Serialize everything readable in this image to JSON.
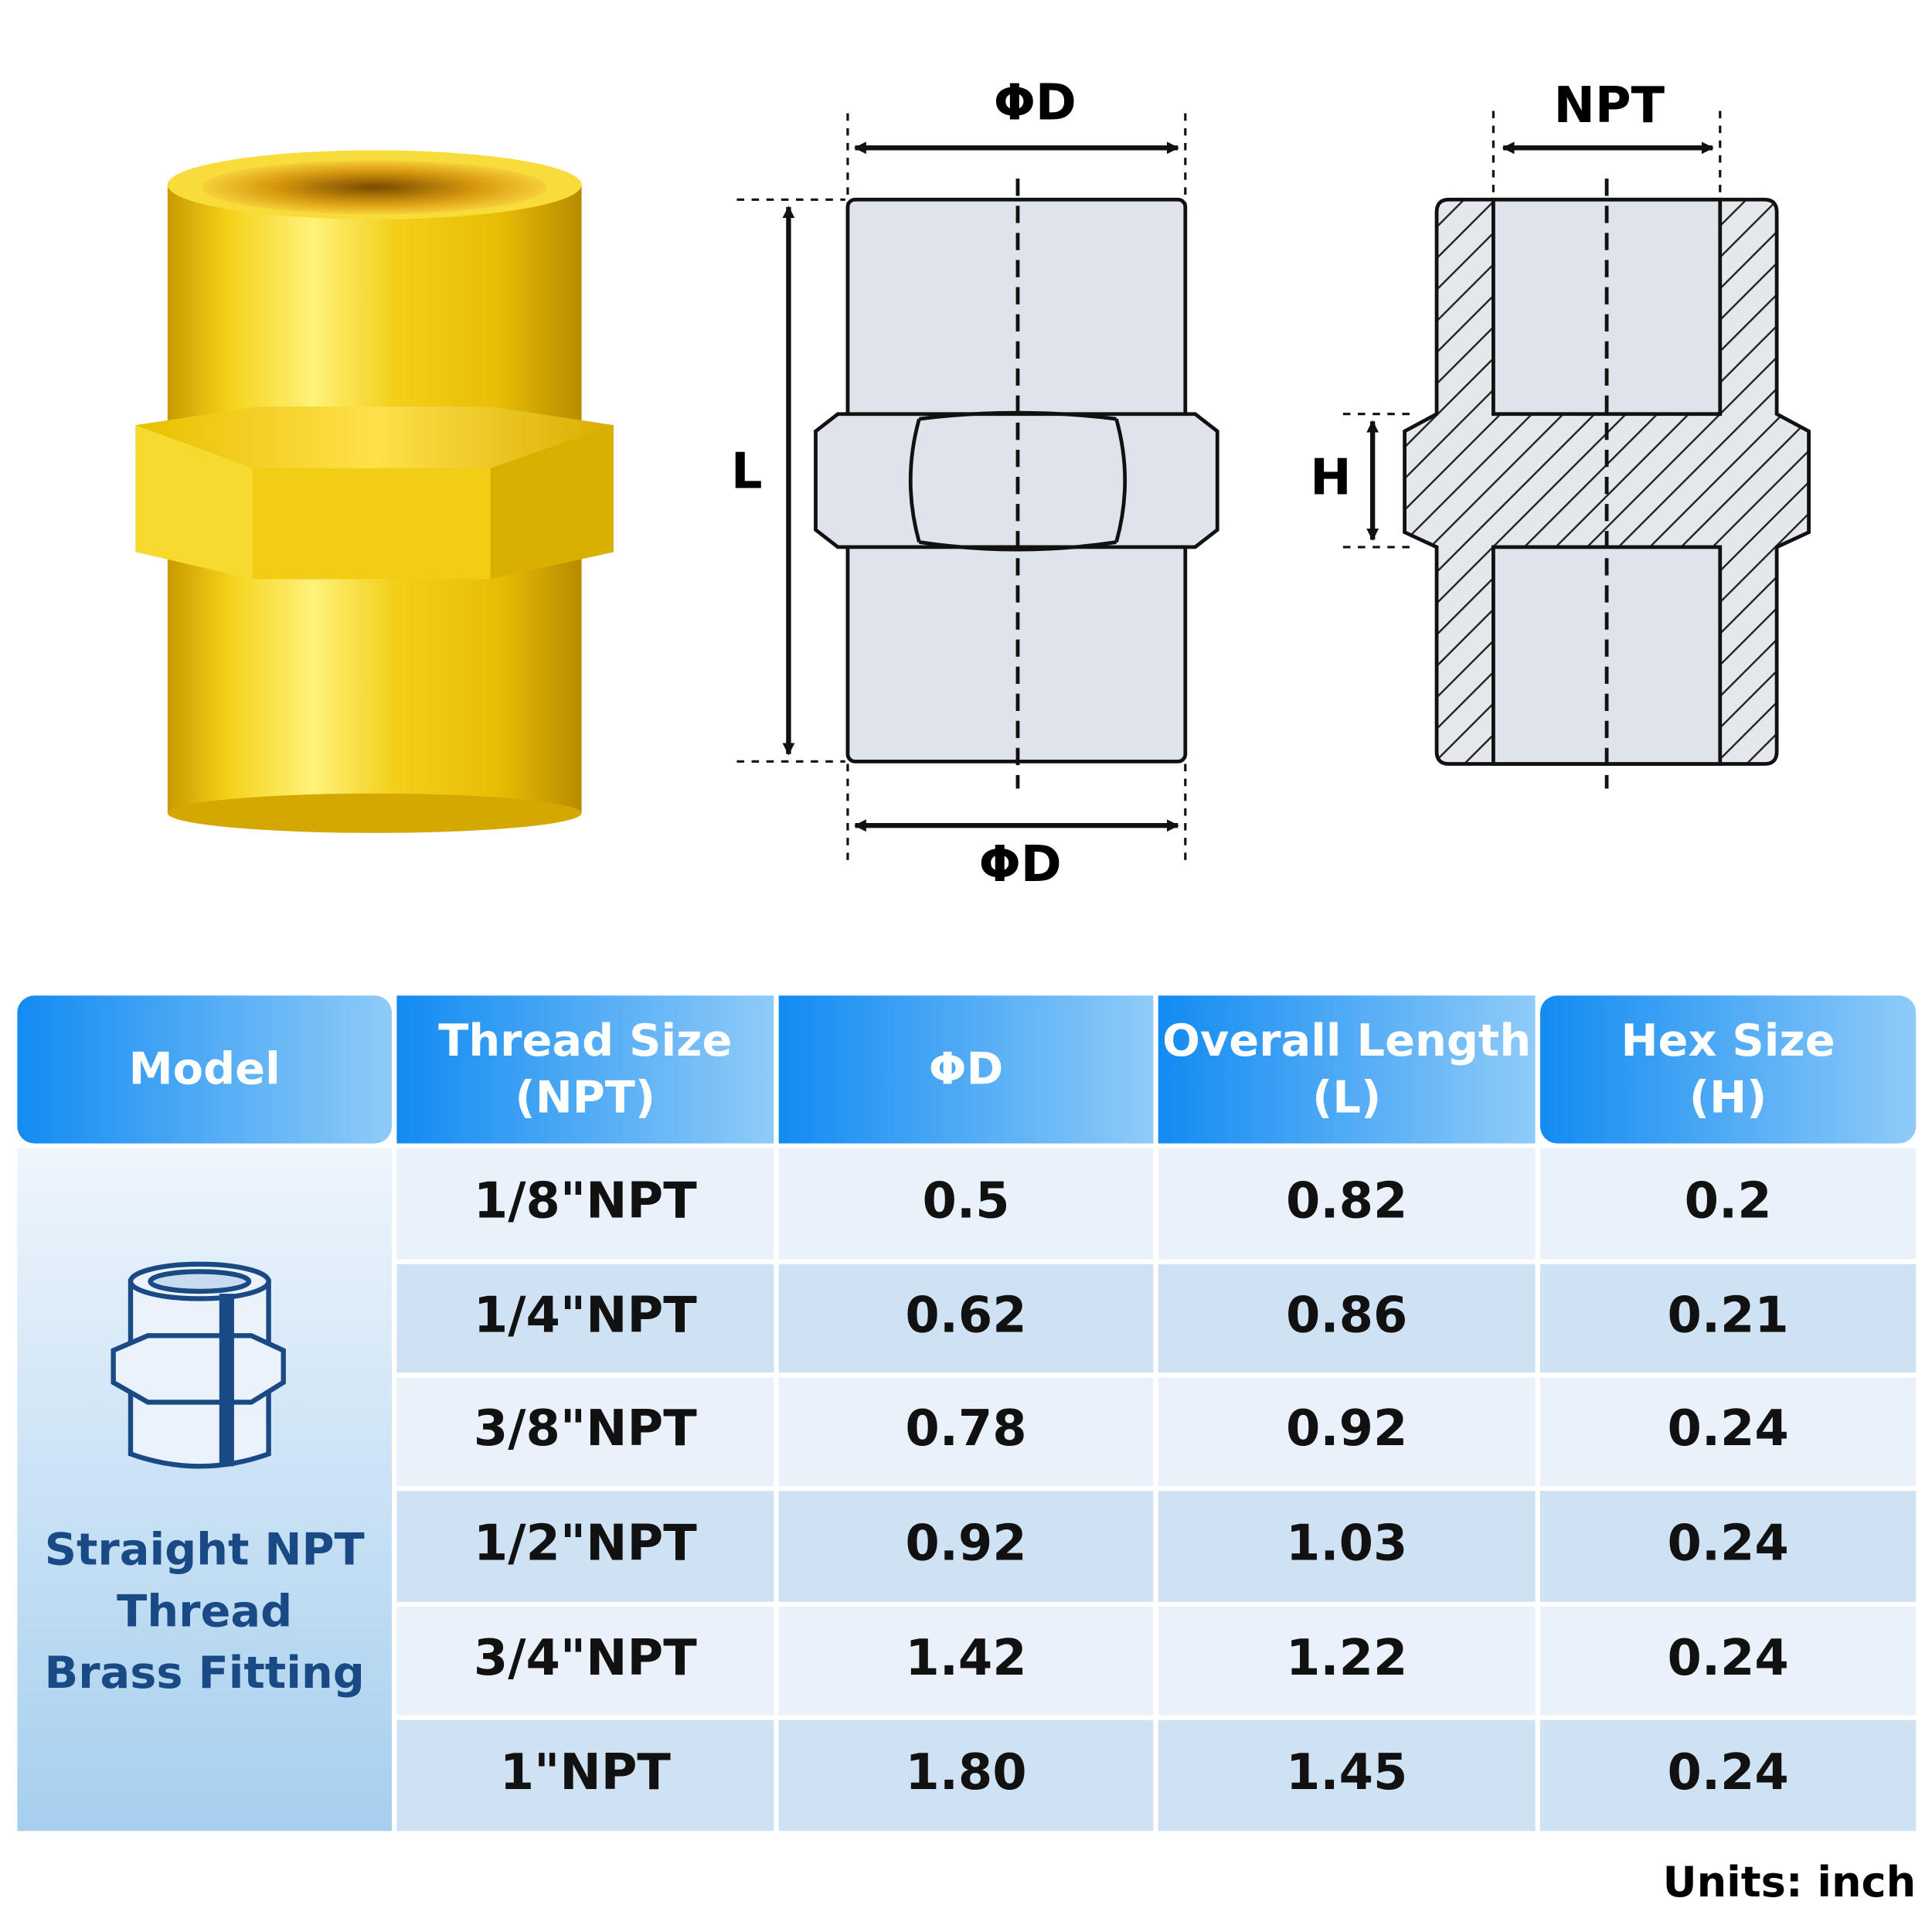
{
  "front_view": {
    "top_label": "ΦD",
    "length_label": "L",
    "bottom_label": "ΦD"
  },
  "section_view": {
    "top_label": "NPT",
    "hex_label": "H"
  },
  "table": {
    "header": [
      [
        "Model"
      ],
      [
        "Thread Size",
        "(NPT)"
      ],
      [
        "ΦD"
      ],
      [
        "Overall Length",
        "(L)"
      ],
      [
        "Hex Size",
        "(H)"
      ]
    ],
    "model": [
      "Straight NPT",
      "Thread",
      "Brass Fitting"
    ],
    "rows": [
      [
        "1/8\"NPT",
        "0.5",
        "0.82",
        "0.2"
      ],
      [
        "1/4\"NPT",
        "0.62",
        "0.86",
        "0.21"
      ],
      [
        "3/8\"NPT",
        "0.78",
        "0.92",
        "0.24"
      ],
      [
        "1/2\"NPT",
        "0.92",
        "1.03",
        "0.24"
      ],
      [
        "3/4\"NPT",
        "1.42",
        "1.22",
        "0.24"
      ],
      [
        "1\"NPT",
        "1.80",
        "1.45",
        "0.24"
      ]
    ]
  },
  "units": "Units: inch"
}
